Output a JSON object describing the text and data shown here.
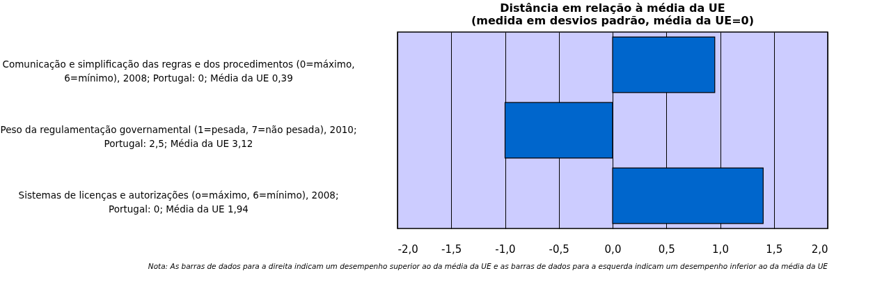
{
  "chart_data": {
    "type": "bar",
    "orientation": "horizontal",
    "title": "Distância em relação à média da UE\n(medida em desvios padrão, média da UE=0)",
    "categories": [
      "Comunicação e simplificação das regras e dos procedimentos (0=máximo, 6=mínimo), 2008; Portugal: 0; Média da UE 0,39",
      "Peso da regulamentação governamental (1=pesada, 7=não pesada), 2010; Portugal: 2,5; Média da UE 3,12",
      "Sistemas de licenças e autorizações (o=máximo, 6=mínimo), 2008; Portugal: 0; Média da UE 1,94"
    ],
    "values": [
      0.95,
      -1.0,
      1.4
    ],
    "color": "#0066cc",
    "xlim": [
      -2,
      2
    ],
    "xticks": [
      {
        "value": -2,
        "label": "-2,0"
      },
      {
        "value": -1.5,
        "label": "-1,5"
      },
      {
        "value": -1,
        "label": "-1,0"
      },
      {
        "value": -0.5,
        "label": "-0,5"
      },
      {
        "value": 0,
        "label": "0,0"
      },
      {
        "value": 0.5,
        "label": "0,5"
      },
      {
        "value": 1,
        "label": "1,0"
      },
      {
        "value": 1.5,
        "label": "1,5"
      },
      {
        "value": 2,
        "label": "2,0"
      }
    ],
    "grid": "x",
    "annotations": [
      "Nota: As barras de dados para a direita indicam um desempenho superior ao da média da UE e as barras de dados para a esquerda indicam um desempenho inferior ao da média da UE"
    ]
  }
}
